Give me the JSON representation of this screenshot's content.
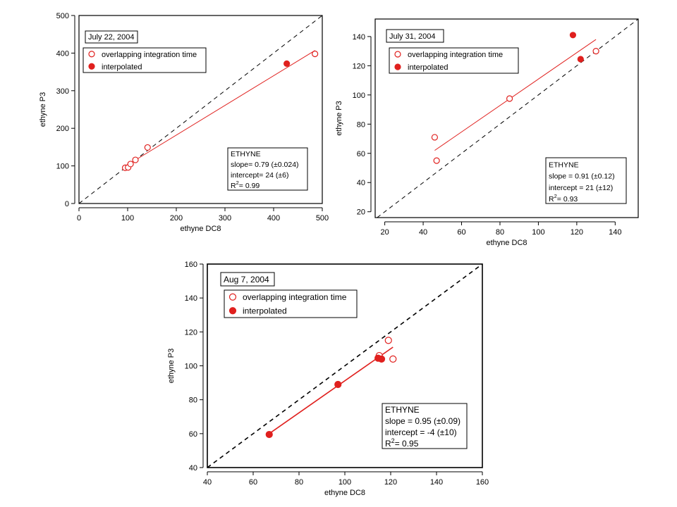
{
  "chart_data": [
    {
      "type": "scatter",
      "date_label": "July 22, 2004",
      "xlabel": "ethyne DC8",
      "ylabel": "ethyne P3",
      "xlim": [
        0,
        500
      ],
      "ylim": [
        0,
        500
      ],
      "xticks": [
        0,
        100,
        200,
        300,
        400,
        500
      ],
      "yticks": [
        0,
        100,
        200,
        300,
        400,
        500
      ],
      "legend": {
        "placement": "top-left",
        "entries": [
          "overlapping integration time",
          "interpolated"
        ]
      },
      "series": [
        {
          "name": "overlapping integration time",
          "marker": "open-circle",
          "color": "#e0201e",
          "points": [
            [
              95,
              95
            ],
            [
              101,
              96
            ],
            [
              106,
              105
            ],
            [
              116,
              116
            ],
            [
              141,
              149
            ],
            [
              485,
              398
            ]
          ]
        },
        {
          "name": "interpolated",
          "marker": "filled-circle",
          "color": "#e0201e",
          "points": [
            [
              427,
              372
            ]
          ]
        }
      ],
      "fit": {
        "x": [
          95,
          485
        ],
        "y": [
          99,
          407
        ]
      },
      "one_to_one": true,
      "stats": {
        "title": "ETHYNE",
        "slope": "slope= 0.79 (±0.024)",
        "intercept": "intercept= 24 (±6)",
        "r2_value": "= 0.99"
      }
    },
    {
      "type": "scatter",
      "date_label": "July 31, 2004",
      "xlabel": "ethyne DC8",
      "ylabel": "ethyne P3",
      "xlim": [
        15,
        152
      ],
      "ylim": [
        16,
        152
      ],
      "xticks": [
        20,
        40,
        60,
        80,
        100,
        120,
        140
      ],
      "yticks": [
        20,
        40,
        60,
        80,
        100,
        120,
        140
      ],
      "legend": {
        "placement": "top-left",
        "entries": [
          "overlapping integration time",
          "interpolated"
        ]
      },
      "series": [
        {
          "name": "overlapping integration time",
          "marker": "open-circle",
          "color": "#e0201e",
          "points": [
            [
              46,
              71
            ],
            [
              47,
              55
            ],
            [
              85,
              97.5
            ],
            [
              130,
              130
            ]
          ]
        },
        {
          "name": "interpolated",
          "marker": "filled-circle",
          "color": "#e0201e",
          "points": [
            [
              118,
              141
            ],
            [
              122,
              124.5
            ]
          ]
        }
      ],
      "fit": {
        "x": [
          46,
          130
        ],
        "y": [
          62,
          138
        ]
      },
      "one_to_one": true,
      "stats": {
        "title": "ETHYNE",
        "slope": "slope = 0.91 (±0.12)",
        "intercept": "intercept = 21 (±12)",
        "r2_value": "= 0.93"
      }
    },
    {
      "type": "scatter",
      "date_label": "Aug 7, 2004",
      "xlabel": "ethyne DC8",
      "ylabel": "ethyne P3",
      "xlim": [
        40,
        160
      ],
      "ylim": [
        40,
        160
      ],
      "xticks": [
        40,
        60,
        80,
        100,
        120,
        140,
        160
      ],
      "yticks": [
        40,
        60,
        80,
        100,
        120,
        140,
        160
      ],
      "legend": {
        "placement": "top-left",
        "entries": [
          "overlapping integration time",
          "interpolated"
        ]
      },
      "series": [
        {
          "name": "overlapping integration time",
          "marker": "open-circle",
          "color": "#e0201e",
          "points": [
            [
              115,
              106
            ],
            [
              119,
              115
            ],
            [
              121,
              104
            ]
          ]
        },
        {
          "name": "interpolated",
          "marker": "filled-circle",
          "color": "#e0201e",
          "points": [
            [
              67,
              59.5
            ],
            [
              97,
              89
            ],
            [
              114.5,
              104.5
            ],
            [
              116,
              104
            ]
          ]
        }
      ],
      "fit": {
        "x": [
          67,
          121
        ],
        "y": [
          60,
          111
        ]
      },
      "one_to_one": true,
      "stats": {
        "title": "ETHYNE",
        "slope": "slope = 0.95 (±0.09)",
        "intercept": "intercept = -4 (±10)",
        "r2_value": "= 0.95"
      }
    }
  ]
}
